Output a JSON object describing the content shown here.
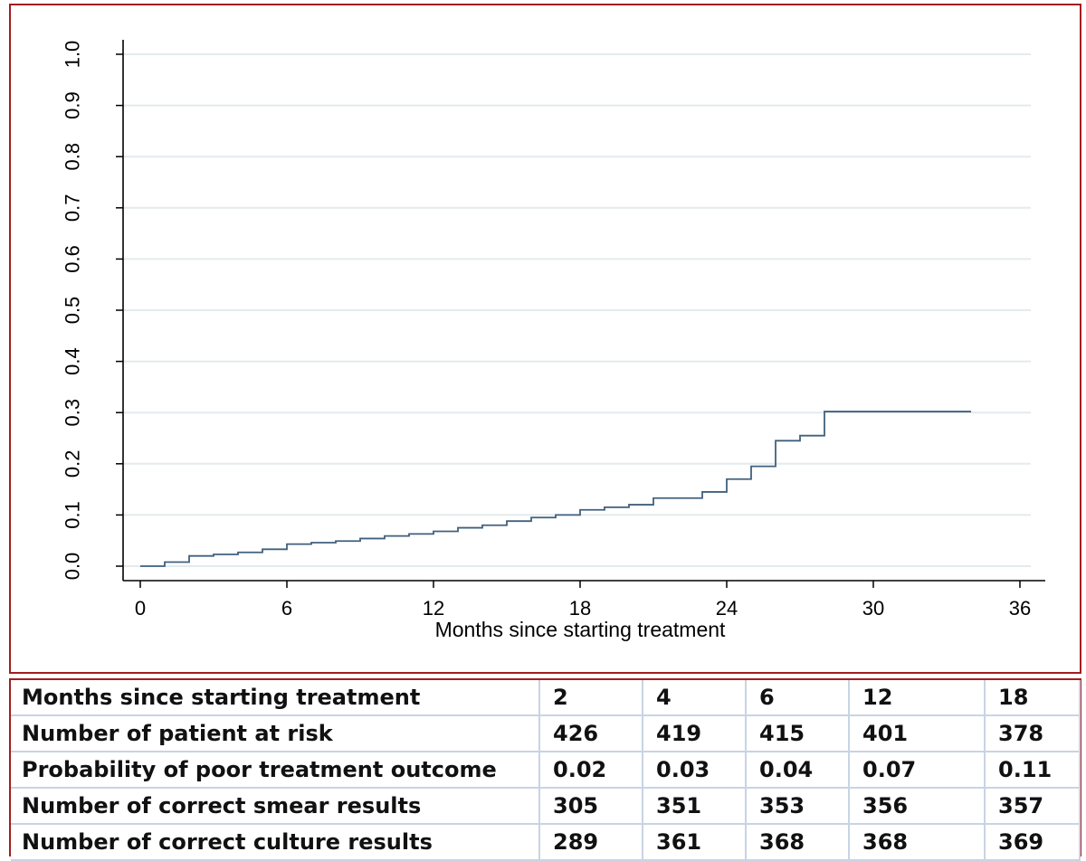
{
  "chart_data": {
    "type": "line",
    "xlabel": "Months since starting treatment",
    "ylabel": "",
    "xlim": [
      0,
      36
    ],
    "ylim": [
      0,
      1
    ],
    "x_ticks": [
      0,
      6,
      12,
      18,
      24,
      30,
      36
    ],
    "y_ticks": [
      "0.0",
      "0.1",
      "0.2",
      "0.3",
      "0.4",
      "0.5",
      "0.6",
      "0.7",
      "0.8",
      "0.9",
      "1.0"
    ],
    "grid": "horizontal",
    "line_color": "#41607e",
    "step": true,
    "x": [
      0,
      1,
      2,
      3,
      4,
      5,
      6,
      7,
      8,
      9,
      10,
      11,
      12,
      13,
      14,
      15,
      16,
      17,
      18,
      19,
      20,
      21,
      22,
      23,
      24,
      25,
      26,
      27,
      28,
      34
    ],
    "y": [
      0.0,
      0.008,
      0.02,
      0.023,
      0.027,
      0.033,
      0.043,
      0.046,
      0.049,
      0.054,
      0.059,
      0.063,
      0.068,
      0.075,
      0.08,
      0.088,
      0.095,
      0.1,
      0.11,
      0.115,
      0.12,
      0.133,
      0.133,
      0.145,
      0.17,
      0.195,
      0.245,
      0.255,
      0.302,
      0.302
    ]
  },
  "table": {
    "rows": [
      {
        "label": "Months since starting treatment",
        "cells": [
          "2",
          "4",
          "6",
          "12",
          "18"
        ]
      },
      {
        "label": "Number of patient at risk",
        "cells": [
          "426",
          "419",
          "415",
          "401",
          "378"
        ]
      },
      {
        "label": "Probability of poor treatment outcome",
        "cells": [
          "0.02",
          "0.03",
          "0.04",
          "0.07",
          "0.11"
        ]
      },
      {
        "label": "Number of correct smear results",
        "cells": [
          "305",
          "351",
          "353",
          "356",
          "357"
        ]
      },
      {
        "label": "Number of correct culture results",
        "cells": [
          "289",
          "361",
          "368",
          "368",
          "369"
        ]
      }
    ]
  }
}
